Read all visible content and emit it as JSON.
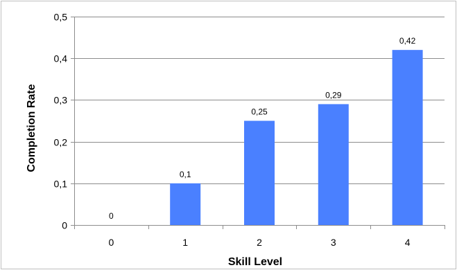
{
  "chart_data": {
    "type": "bar",
    "categories": [
      "0",
      "1",
      "2",
      "3",
      "4"
    ],
    "values": [
      0,
      0.1,
      0.25,
      0.29,
      0.42
    ],
    "data_labels": [
      "0",
      "0,1",
      "0,25",
      "0,29",
      "0,42"
    ],
    "xlabel": "Skill Level",
    "ylabel": "Completion Rate",
    "ylim": [
      0,
      0.5
    ],
    "y_ticks": [
      0,
      0.1,
      0.2,
      0.3,
      0.4,
      0.5
    ],
    "y_tick_labels": [
      "0",
      "0,1",
      "0,2",
      "0,3",
      "0,4",
      "0,5"
    ],
    "grid": true,
    "legend": "none",
    "bar_color": "#4a80ff",
    "grid_color": "#8c8c8c"
  }
}
